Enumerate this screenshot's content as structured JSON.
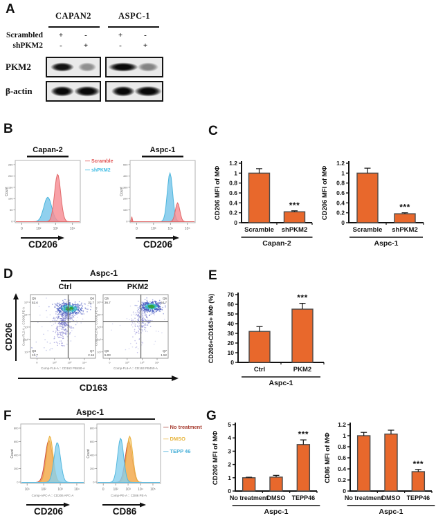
{
  "panels": {
    "A": {
      "letter": "A",
      "cell_lines": [
        "CAPAN2",
        "ASPC-1"
      ],
      "condition_rows": [
        {
          "label": "Scrambled",
          "signs": [
            "+",
            "-",
            "+",
            "-"
          ]
        },
        {
          "label": "shPKM2",
          "signs": [
            "-",
            "+",
            "-",
            "+"
          ]
        }
      ],
      "blots": [
        {
          "label": "PKM2",
          "band_h": 14,
          "bands": [
            {
              "w": 36,
              "i": 0.95
            },
            {
              "w": 28,
              "i": 0.4
            },
            {
              "w": 46,
              "i": 1.0
            },
            {
              "w": 32,
              "i": 0.45
            }
          ]
        },
        {
          "label": "β-actin",
          "band_h": 16,
          "bands": [
            {
              "w": 36,
              "i": 1.0
            },
            {
              "w": 40,
              "i": 1.0
            },
            {
              "w": 36,
              "i": 1.0
            },
            {
              "w": 42,
              "i": 1.0
            }
          ]
        }
      ]
    },
    "B": {
      "letter": "B",
      "legend": [
        {
          "label": "Scramble",
          "color": "#e05252"
        },
        {
          "label": "shPKM2",
          "color": "#3fbce4"
        }
      ]
    },
    "C": {
      "letter": "C"
    },
    "D": {
      "letter": "D",
      "title": "Aspc-1",
      "subplots": [
        "Ctrl",
        "PKM2"
      ],
      "xlabel": "CD163",
      "ylabel": "CD206"
    },
    "E": {
      "letter": "E"
    },
    "F": {
      "letter": "F",
      "title": "Aspc-1",
      "legend": [
        {
          "label": "No treatment",
          "color": "#a63b2f"
        },
        {
          "label": "DMSO",
          "color": "#e7b53e"
        },
        {
          "label": "TEPP 46",
          "color": "#45aed8"
        }
      ]
    },
    "G": {
      "letter": "G"
    }
  },
  "colors": {
    "bar": "#e8682c",
    "bar_stroke": "#4a4a4a"
  },
  "chart_data": [
    {
      "id": "b-capan2",
      "type": "histogram",
      "title": "Capan-2",
      "ylabel": "Count",
      "marker": "CD206",
      "xticks": [
        "0",
        "10²",
        "10³",
        "10⁴"
      ],
      "yticks": [
        "0",
        "50",
        "100",
        "150",
        "200",
        "250"
      ],
      "curves": [
        {
          "peak": 0.5,
          "height": 0.44,
          "sigma": 0.062,
          "fill": "rgba(125,200,235,0.85)",
          "stroke": "#4db6dd",
          "name": "shPKM2"
        },
        {
          "peak": 0.655,
          "height": 0.86,
          "sigma": 0.048,
          "fill": "rgba(246,140,148,0.82)",
          "stroke": "#e06a6a",
          "name": "Scramble"
        }
      ]
    },
    {
      "id": "b-aspc1",
      "type": "histogram",
      "title": "Aspc-1",
      "ylabel": "Count",
      "marker": "CD206",
      "xticks": [
        "0",
        "10³",
        "10⁴",
        "10⁵"
      ],
      "yticks": [
        "0",
        "100",
        "200",
        "300",
        "400",
        "500"
      ],
      "curves": [
        {
          "peak": 0.615,
          "height": 0.88,
          "sigma": 0.042,
          "fill": "rgba(125,200,235,0.85)",
          "stroke": "#4db6dd",
          "name": "shPKM2"
        },
        {
          "peak": 0.735,
          "height": 0.34,
          "sigma": 0.035,
          "fill": "rgba(246,140,148,0.82)",
          "stroke": "#e06a6a",
          "name": "Scramble"
        },
        {
          "peak": 0.012,
          "height": 0.12,
          "sigma": 0.006,
          "fill": "rgba(246,140,148,0.9)",
          "stroke": "#e06a6a",
          "name": "Scramble-spike"
        }
      ]
    },
    {
      "id": "c-capan2",
      "type": "bar",
      "group": "Capan-2",
      "categories": [
        "Scramble",
        "shPKM2"
      ],
      "values": [
        1.0,
        0.22
      ],
      "errors": [
        0.09,
        0.02
      ],
      "sig": [
        "",
        "***"
      ],
      "ylabel": "CD206 MFI of MΦ",
      "yticks": [
        0,
        0.2,
        0.4,
        0.6,
        0.8,
        1,
        1.2
      ],
      "ymax": 1.2,
      "ml": 44
    },
    {
      "id": "c-aspc1",
      "type": "bar",
      "group": "Aspc-1",
      "categories": [
        "Scramble",
        "shPKM2"
      ],
      "values": [
        1.0,
        0.18
      ],
      "errors": [
        0.1,
        0.02
      ],
      "sig": [
        "",
        "***"
      ],
      "ylabel": "CD206 MFI of MΦ",
      "yticks": [
        0,
        0.2,
        0.4,
        0.6,
        0.8,
        1,
        1.2
      ],
      "ymax": 1.2,
      "ml": 44
    },
    {
      "id": "d-ctrl",
      "type": "scatter",
      "name": "Ctrl",
      "xcaption": "Comp-FL6-A :: CD163 PB450-A",
      "ycaption": "Comp-FL2-A :: CD206 PE-A",
      "xticks": [
        "0",
        "10²",
        "10³",
        "10⁴"
      ],
      "yticks": [
        "10¹",
        "10²",
        "10³",
        "10⁴",
        "10⁵"
      ],
      "gate": {
        "fx": 0.58,
        "fy": 0.42
      },
      "quadrants": {
        "tl": {
          "id": "Q5",
          "value": "52.4"
        },
        "tr": {
          "id": "Q6",
          "value": "31.7"
        },
        "bl": {
          "id": "Q8",
          "value": "13.7"
        },
        "br": {
          "id": "Q7",
          "value": "2.16"
        }
      },
      "seed": 7,
      "clusters": [
        {
          "n": 420,
          "cx": 0.6,
          "cy": 0.22,
          "sx": 0.105,
          "sy": 0.05,
          "core": true
        },
        {
          "n": 180,
          "cx": 0.52,
          "cy": 0.38,
          "sx": 0.07,
          "sy": 0.1,
          "color": "#5a5fc0",
          "op": 0.55
        },
        {
          "n": 90,
          "cx": 0.48,
          "cy": 0.55,
          "sx": 0.06,
          "sy": 0.12,
          "color": "#6a5fc5",
          "op": 0.5
        },
        {
          "n": 50,
          "cx": 0.55,
          "cy": 0.38,
          "sx": 0.25,
          "sy": 0.2,
          "color": "#7a80d0",
          "op": 0.35
        },
        {
          "n": 25,
          "cx": 0.3,
          "cy": 0.8,
          "sx": 0.25,
          "sy": 0.12,
          "color": "#6a72c8",
          "op": 0.4
        }
      ]
    },
    {
      "id": "d-pkm2",
      "type": "scatter",
      "name": "PKM2",
      "xcaption": "Comp-FL6-A :: CD163 PB450-A",
      "ycaption": "Comp-FL2-A :: CD206 PE-A",
      "xticks": [
        "0",
        "10²",
        "10³",
        "10⁴"
      ],
      "yticks": [
        "10¹",
        "10²",
        "10³",
        "10⁴",
        "10⁵"
      ],
      "gate": {
        "fx": 0.58,
        "fy": 0.42
      },
      "quadrants": {
        "tl": {
          "id": "Q5",
          "value": "36.7"
        },
        "tr": {
          "id": "Q6",
          "value": "54.7"
        },
        "bl": {
          "id": "Q8",
          "value": "5.03"
        },
        "br": {
          "id": "Q7",
          "value": "1.52"
        }
      },
      "seed": 13,
      "clusters": [
        {
          "n": 430,
          "cx": 0.74,
          "cy": 0.19,
          "sx": 0.085,
          "sy": 0.042,
          "core": true
        },
        {
          "n": 110,
          "cx": 0.62,
          "cy": 0.38,
          "sx": 0.07,
          "sy": 0.1,
          "color": "#5a5fc0",
          "op": 0.45
        },
        {
          "n": 60,
          "cx": 0.58,
          "cy": 0.5,
          "sx": 0.08,
          "sy": 0.12,
          "color": "#6a5fc5",
          "op": 0.4
        },
        {
          "n": 30,
          "cx": 0.5,
          "cy": 0.45,
          "sx": 0.22,
          "sy": 0.18,
          "color": "#7a80d0",
          "op": 0.3
        }
      ]
    },
    {
      "id": "e",
      "type": "bar",
      "group": "Aspc-1",
      "categories": [
        "Ctrl",
        "PKM2"
      ],
      "values": [
        32,
        55
      ],
      "errors": [
        5,
        6
      ],
      "sig": [
        "",
        "***"
      ],
      "ylabel": "CD206+CD163+ MΦ (%)",
      "ylfont": 9,
      "yticks": [
        0,
        10,
        20,
        30,
        40,
        50,
        60,
        70
      ],
      "ymax": 70,
      "ml": 48
    },
    {
      "id": "f-cd206",
      "type": "histogram",
      "ylabel": "Count",
      "marker": "CD206",
      "xcaption": "Comp-APC-A :: CD206 APC-A",
      "xticks": [
        "10¹",
        "10²",
        "10³",
        "10⁴"
      ],
      "yticks": [
        "0",
        "200",
        "400",
        "600",
        "800"
      ],
      "curves": [
        {
          "peak": 0.44,
          "height": 0.8,
          "sigma": 0.058,
          "fill": "rgba(235,110,80,0.75)",
          "stroke": "#cc4f3d",
          "name": "No treatment"
        },
        {
          "peak": 0.455,
          "height": 0.88,
          "sigma": 0.052,
          "fill": "rgba(247,200,95,0.7)",
          "stroke": "#e8ad3e",
          "name": "DMSO"
        },
        {
          "peak": 0.575,
          "height": 0.76,
          "sigma": 0.052,
          "fill": "rgba(135,208,238,0.8)",
          "stroke": "#54b8de",
          "name": "TEPP 46"
        }
      ]
    },
    {
      "id": "f-cd86",
      "type": "histogram",
      "ylabel": "Count",
      "marker": "CD86",
      "xcaption": "Comp-PE-A :: CD86 PE-A",
      "xticks": [
        "0",
        "10²",
        "10³",
        "10⁴",
        "10⁵"
      ],
      "yticks": [
        "0",
        "200",
        "400",
        "600",
        "800"
      ],
      "curves": [
        {
          "peak": 0.5,
          "height": 0.78,
          "sigma": 0.055,
          "fill": "rgba(235,110,80,0.75)",
          "stroke": "#cc4f3d",
          "name": "No treatment"
        },
        {
          "peak": 0.515,
          "height": 0.88,
          "sigma": 0.05,
          "fill": "rgba(247,200,95,0.7)",
          "stroke": "#e8ad3e",
          "name": "DMSO"
        },
        {
          "peak": 0.37,
          "height": 0.84,
          "sigma": 0.048,
          "fill": "rgba(135,208,238,0.8)",
          "stroke": "#54b8de",
          "name": "TEPP 46"
        }
      ]
    },
    {
      "id": "g-cd206",
      "type": "bar",
      "group": "Aspc-1",
      "categories": [
        "No treatment",
        "DMSO",
        "TEPP46"
      ],
      "values": [
        1.0,
        1.05,
        3.5
      ],
      "errors": [
        0.04,
        0.13,
        0.35
      ],
      "sig": [
        "",
        "",
        "***"
      ],
      "ylabel": "CD206 MFI of MΦ",
      "yticks": [
        0,
        1,
        2,
        3,
        4,
        5
      ],
      "ymax": 5,
      "ml": 38,
      "barw": 18,
      "catfont": 9,
      "ulpad": 24
    },
    {
      "id": "g-cd86",
      "type": "bar",
      "group": "Aspc-1",
      "categories": [
        "No treatment",
        "DMSO",
        "TEPP46"
      ],
      "values": [
        1.0,
        1.03,
        0.35
      ],
      "errors": [
        0.06,
        0.07,
        0.04
      ],
      "sig": [
        "",
        "",
        "***"
      ],
      "ylabel": "CD86 MFI of MΦ",
      "yticks": [
        0,
        0.2,
        0.4,
        0.6,
        0.8,
        1,
        1.2
      ],
      "ymax": 1.2,
      "ml": 42,
      "barw": 18,
      "catfont": 9,
      "ulpad": 24
    }
  ]
}
